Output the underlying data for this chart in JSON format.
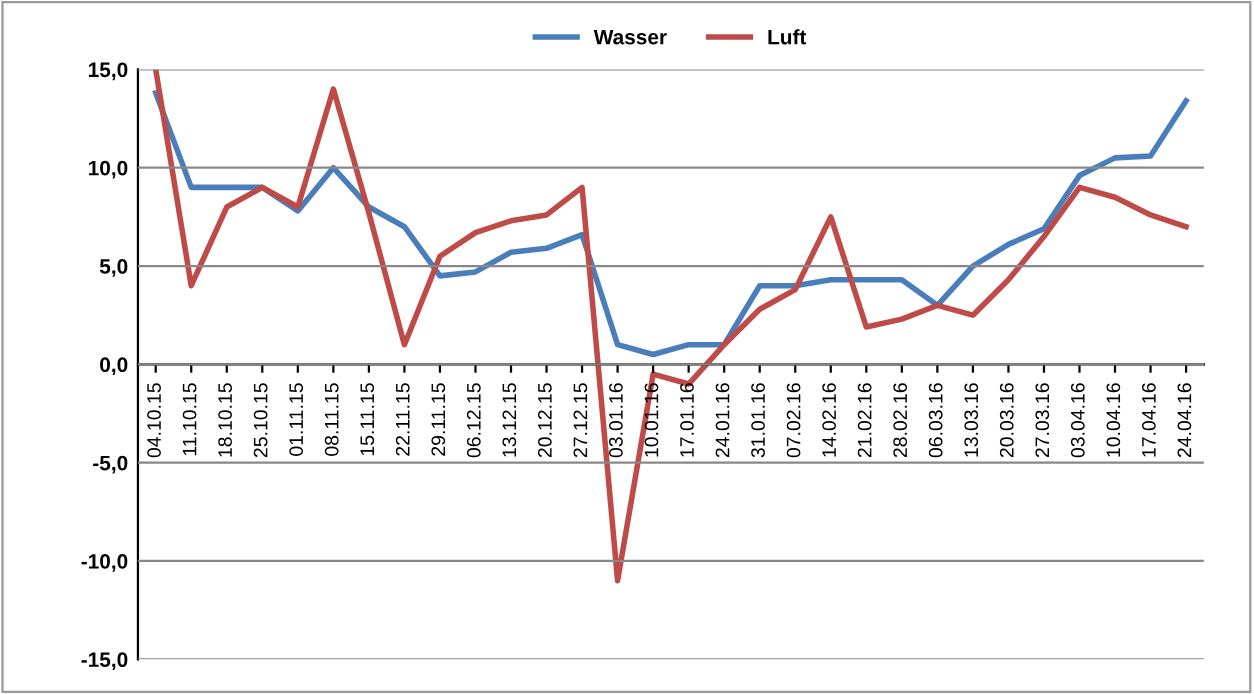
{
  "chart_data": {
    "type": "line",
    "categories": [
      "04.10.15",
      "11.10.15",
      "18.10.15",
      "25.10.15",
      "01.11.15",
      "08.11.15",
      "15.11.15",
      "22.11.15",
      "29.11.15",
      "06.12.15",
      "13.12.15",
      "20.12.15",
      "27.12.15",
      "03.01.16",
      "10.01.16",
      "17.01.16",
      "24.01.16",
      "31.01.16",
      "07.02.16",
      "14.02.16",
      "21.02.16",
      "28.02.16",
      "06.03.16",
      "13.03.16",
      "20.03.16",
      "27.03.16",
      "03.04.16",
      "10.04.16",
      "17.04.16",
      "24.04.16"
    ],
    "series": [
      {
        "name": "Wasser",
        "color": "#4a7ebb",
        "values": [
          13.8,
          9,
          9,
          9,
          7.8,
          10,
          8,
          7,
          4.5,
          4.7,
          5.7,
          5.9,
          6.6,
          1,
          0.5,
          1,
          1,
          4,
          4,
          4.3,
          4.3,
          4.3,
          3,
          5,
          6.1,
          6.9,
          9.6,
          10.5,
          10.6,
          13.4
        ]
      },
      {
        "name": "Luft",
        "color": "#be4b48",
        "values": [
          15,
          4,
          8,
          9,
          8,
          14,
          7.7,
          1,
          5.5,
          6.7,
          7.3,
          7.6,
          9,
          -11,
          -0.5,
          -1,
          1,
          2.8,
          3.8,
          7.5,
          1.9,
          2.3,
          3,
          2.5,
          4.3,
          6.5,
          9,
          8.5,
          7.6,
          7
        ]
      }
    ],
    "ylim": [
      -15,
      15
    ],
    "yticks": [
      {
        "value": -15,
        "label": "-15,0"
      },
      {
        "value": -10,
        "label": "-10,0"
      },
      {
        "value": -5,
        "label": "-5,0"
      },
      {
        "value": 0,
        "label": "0,0"
      },
      {
        "value": 5,
        "label": "5,0"
      },
      {
        "value": 10,
        "label": "10,0"
      },
      {
        "value": 15,
        "label": "15,0"
      }
    ],
    "grid": "y",
    "legend": "top",
    "marker": "none",
    "line_style": "solid"
  }
}
